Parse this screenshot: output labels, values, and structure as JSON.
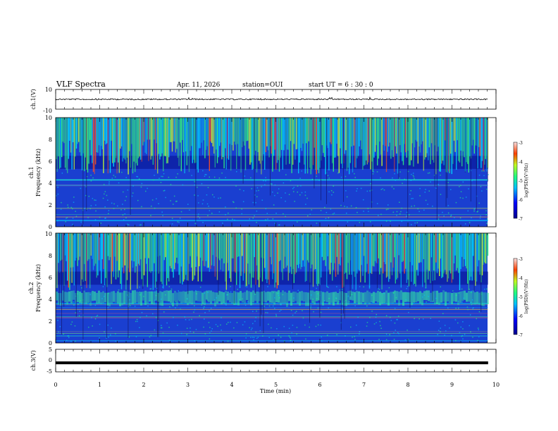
{
  "header": {
    "title": "VLF Spectra",
    "date": "Apr. 11, 2026",
    "station": "station=OUI",
    "start_ut": "start  UT =   6  : 30 : 0"
  },
  "chart_data": [
    {
      "id": "ch1_voltage",
      "type": "line",
      "ylabel": "ch.1(V)",
      "ylim": [
        -10,
        10
      ],
      "yticks": [
        "10",
        "-10"
      ],
      "description_level": 0.0
    },
    {
      "id": "ch1_spectrogram",
      "type": "heatmap",
      "ylabel_line1": "ch.1",
      "ylabel_line2": "Frequency  (kHz)",
      "ylim": [
        0,
        10
      ],
      "yticks": [
        "0",
        "2",
        "4",
        "6",
        "8",
        "10"
      ],
      "colorbar": {
        "label": "log(PSD)(V²/Hz)",
        "range": [
          -7,
          -3
        ],
        "ticks": [
          "-3",
          "-4",
          "-5",
          "-6",
          "-7"
        ]
      }
    },
    {
      "id": "ch2_spectrogram",
      "type": "heatmap",
      "ylabel_line1": "ch.2",
      "ylabel_line2": "Frequency  (kHz)",
      "ylim": [
        0,
        10
      ],
      "yticks": [
        "0",
        "2",
        "4",
        "6",
        "8",
        "10"
      ],
      "colorbar": {
        "label": "log(PSD)(V²/Hz)",
        "range": [
          -7,
          -3
        ],
        "ticks": [
          "-3",
          "-4",
          "-5",
          "-6",
          "-7"
        ]
      }
    },
    {
      "id": "ch3_voltage",
      "type": "line",
      "ylabel": "ch.3(V)",
      "ylim": [
        -5,
        5
      ],
      "yticks": [
        "5",
        "0",
        "-5"
      ],
      "description_level": -1.0
    }
  ],
  "xaxis": {
    "label": "Time  (min)",
    "xlim": [
      0,
      10
    ],
    "ticks": [
      "0",
      "1",
      "2",
      "3",
      "4",
      "5",
      "6",
      "7",
      "8",
      "9",
      "10"
    ],
    "data_end": 9.82
  }
}
